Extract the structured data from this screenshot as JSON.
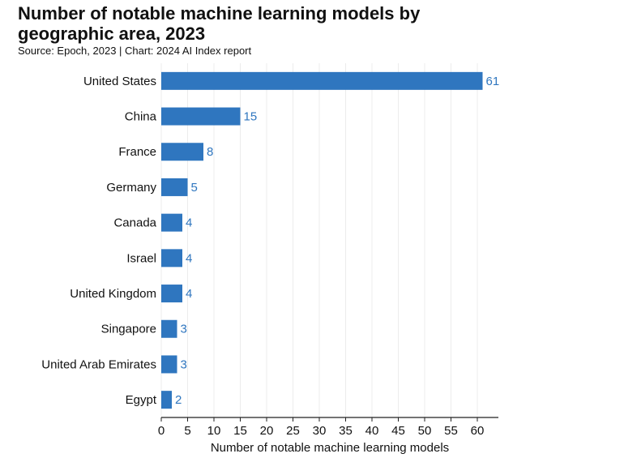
{
  "chart_data": {
    "type": "bar",
    "orientation": "horizontal",
    "title": "Number of notable machine learning models by geographic area, 2023",
    "subtitle": "Source: Epoch, 2023 | Chart: 2024 AI Index report",
    "x_label": "Number of notable machine learning models",
    "categories": [
      "United States",
      "China",
      "France",
      "Germany",
      "Canada",
      "Israel",
      "United Kingdom",
      "Singapore",
      "United Arab Emirates",
      "Egypt"
    ],
    "values": [
      61,
      15,
      8,
      5,
      4,
      4,
      4,
      3,
      3,
      2
    ],
    "color": "#2f76bf",
    "xlim": [
      0,
      64
    ],
    "xticks": [
      0,
      5,
      10,
      15,
      20,
      25,
      30,
      35,
      40,
      45,
      50,
      55,
      60
    ],
    "grid": true
  }
}
